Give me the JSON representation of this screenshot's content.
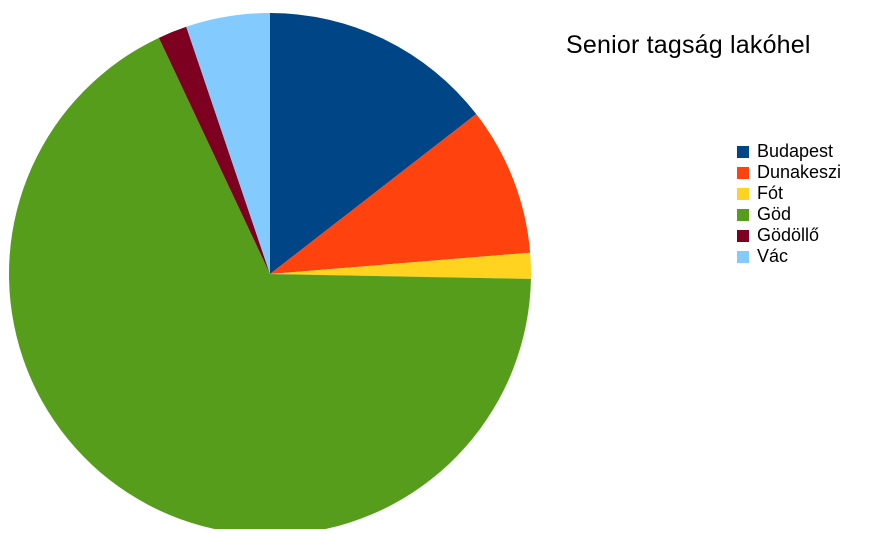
{
  "chart_data": {
    "type": "pie",
    "title": "Senior tagság lakóhel",
    "start_angle_deg": 0,
    "direction": "clockwise",
    "slices": [
      {
        "label": "Budapest",
        "value": 14.5,
        "color": "#004586"
      },
      {
        "label": "Dunakeszi",
        "value": 9.2,
        "color": "#ff420e"
      },
      {
        "label": "Fót",
        "value": 1.6,
        "color": "#ffd320"
      },
      {
        "label": "Göd",
        "value": 67.7,
        "color": "#579d1c"
      },
      {
        "label": "Gödöllő",
        "value": 1.8,
        "color": "#7e0021"
      },
      {
        "label": "Vác",
        "value": 5.2,
        "color": "#83caff"
      }
    ],
    "legend_position": "right"
  }
}
